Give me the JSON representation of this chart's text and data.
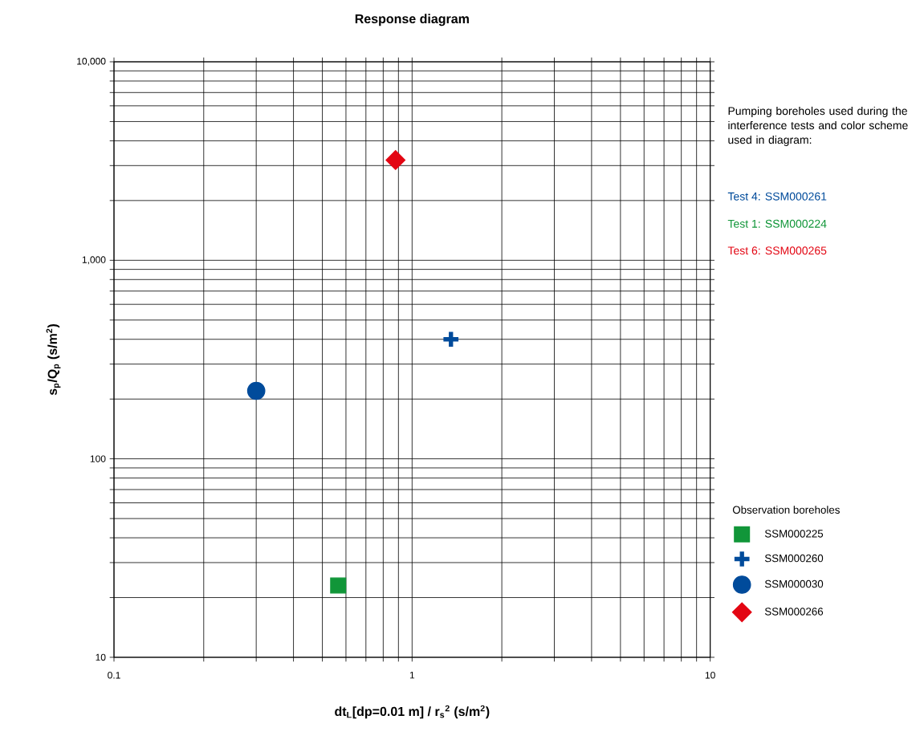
{
  "chart_data": {
    "type": "scatter",
    "title": "Response diagram",
    "xlabel": "dt$_{L}$[dp=0.01 m] / r$_{s}$$^{2}$ (s/m$^{2}$)",
    "ylabel": "s$_{p}$/Q$_{p}$ (s/m$^{2}$)",
    "legend_title": "Observation boreholes",
    "legend": "right",
    "log": "xy",
    "grid": true,
    "xlim": [
      0.1,
      10
    ],
    "ylim": [
      10,
      10000
    ],
    "xticks": [
      0.1,
      1,
      10
    ],
    "yticks": [
      10,
      100,
      {
        "value": 1000,
        "label": "1,000"
      },
      {
        "value": 10000,
        "label": "10,000"
      }
    ],
    "annotations": [
      "Pumping boreholes used during the interference tests and color scheme used in diagram:",
      "Test 4: SSM000261",
      "Test 1: SSM000224",
      "Test 6: SSM000265"
    ],
    "series": [
      {
        "name": "SSM000225",
        "color": "#119639",
        "marker": "square",
        "x": [
          0.565
        ],
        "values": [
          23
        ]
      },
      {
        "name": "SSM000260",
        "color": "#004b9b",
        "marker": "cross",
        "x": [
          1.35
        ],
        "values": [
          400
        ]
      },
      {
        "name": "SSM000030",
        "color": "#004b9b",
        "marker": "circle",
        "x": [
          0.3
        ],
        "values": [
          220
        ]
      },
      {
        "name": "SSM000266",
        "color": "#e30613",
        "marker": "diamond",
        "x": [
          0.88
        ],
        "values": [
          3200
        ]
      }
    ]
  }
}
